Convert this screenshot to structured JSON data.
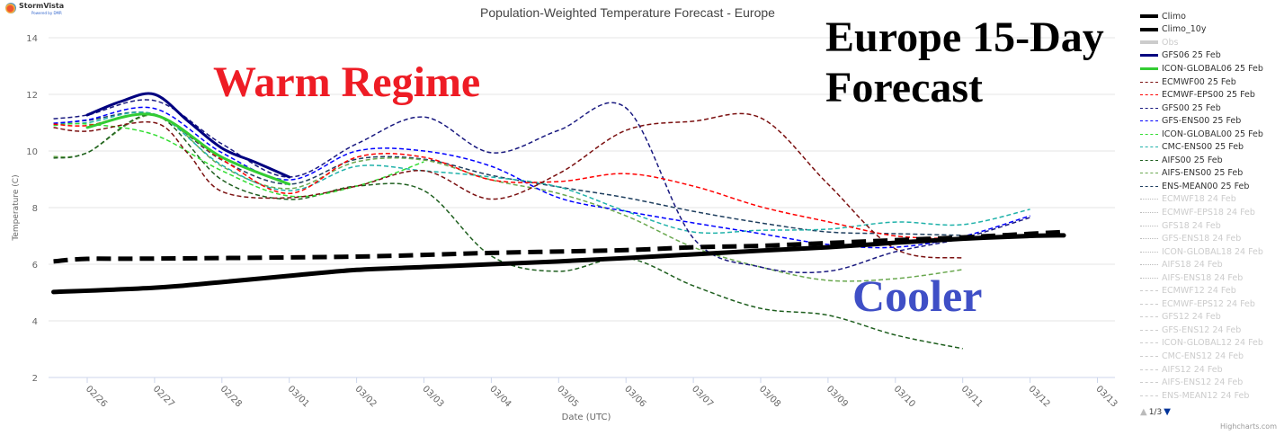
{
  "logo": {
    "name": "StormVista",
    "sub": "Powered by DMR"
  },
  "overlays": {
    "warm": "Warm Regime",
    "europe_line1": "Europe 15-Day",
    "europe_line2": "Forecast",
    "cooler": "Cooler"
  },
  "legend_pager": {
    "page": "1/3",
    "up_color": "#bbbbbb",
    "down_color": "#003399"
  },
  "credits": "Highcharts.com",
  "chart_data": {
    "type": "line",
    "title": "Population-Weighted Temperature Forecast - Europe",
    "xlabel": "Date (UTC)",
    "ylabel": "Temperature (C)",
    "ylim": [
      2,
      14
    ],
    "yticks": [
      2,
      4,
      6,
      8,
      10,
      12,
      14
    ],
    "xticks": [
      "02/26",
      "02/27",
      "02/28",
      "03/01",
      "03/02",
      "03/03",
      "03/04",
      "03/05",
      "03/06",
      "03/07",
      "03/08",
      "03/09",
      "03/10",
      "03/11",
      "03/12",
      "03/13"
    ],
    "grid": true,
    "legend_placement": "right",
    "series": [
      {
        "name": "Climo",
        "color": "#000000",
        "style": "solid-thick",
        "x": [
          "02/25 12",
          "02/27 00",
          "02/28 00",
          "03/01 00",
          "03/02 00",
          "03/03 00",
          "03/04 00",
          "03/05 00",
          "03/06 00",
          "03/07 00",
          "03/08 00",
          "03/09 00",
          "03/10 00",
          "03/11 00",
          "03/12 00",
          "03/12 12"
        ],
        "y": [
          5.02,
          5.17,
          5.37,
          5.59,
          5.8,
          5.9,
          6.0,
          6.1,
          6.22,
          6.35,
          6.48,
          6.6,
          6.76,
          6.9,
          7.0,
          7.02
        ]
      },
      {
        "name": "Climo_10y",
        "color": "#000000",
        "style": "dash-thick",
        "x": [
          "02/25 12",
          "02/26 00",
          "02/27 00",
          "03/02 00",
          "03/04 00",
          "03/06 00",
          "03/07 00",
          "03/08 00",
          "03/09 00",
          "03/10 00",
          "03/11 00",
          "03/12 12"
        ],
        "y": [
          6.1,
          6.19,
          6.2,
          6.27,
          6.4,
          6.5,
          6.6,
          6.65,
          6.75,
          6.85,
          6.95,
          7.14
        ]
      },
      {
        "name": "Obs",
        "color": "#cccccc",
        "style": "legend-only",
        "x": [],
        "y": []
      },
      {
        "name": "GFS06 25 Feb",
        "color": "#000080",
        "style": "solid",
        "x": [
          "02/26 00",
          "02/26 12",
          "02/27 00",
          "02/27 12",
          "02/28 00",
          "02/28 12",
          "03/01 00"
        ],
        "y": [
          11.27,
          11.75,
          12.0,
          11.05,
          10.1,
          9.6,
          9.08
        ]
      },
      {
        "name": "ICON-GLOBAL06 25 Feb",
        "color": "#33cc33",
        "style": "solid",
        "x": [
          "02/26 00",
          "02/27 00",
          "02/28 00",
          "03/01 00"
        ],
        "y": [
          10.83,
          11.27,
          9.78,
          8.83
        ]
      },
      {
        "name": "ECMWF00 25 Feb",
        "color": "#7b1010",
        "style": "dash",
        "x": [
          "02/25 12",
          "02/26 00",
          "02/27 00",
          "02/27 12",
          "02/28 00",
          "03/01 00",
          "03/02 00",
          "03/03 00",
          "03/04 00",
          "03/05 00",
          "03/06 00",
          "03/07 00",
          "03/08 00",
          "03/09 00",
          "03/10 00",
          "03/11 00"
        ],
        "y": [
          10.83,
          10.7,
          11.0,
          9.9,
          8.57,
          8.35,
          8.76,
          9.3,
          8.3,
          9.2,
          10.73,
          11.05,
          11.17,
          8.83,
          6.54,
          6.22
        ]
      },
      {
        "name": "ECMWF-EPS00 25 Feb",
        "color": "#ff0000",
        "style": "dash",
        "x": [
          "02/25 12",
          "02/26 00",
          "02/27 00",
          "02/28 00",
          "03/01 00",
          "03/02 00",
          "03/03 00",
          "03/04 00",
          "03/05 00",
          "03/06 00",
          "03/07 00",
          "03/08 00",
          "03/09 00",
          "03/10 00",
          "03/11 00"
        ],
        "y": [
          10.95,
          10.9,
          11.27,
          9.7,
          8.5,
          9.78,
          9.78,
          8.98,
          8.92,
          9.2,
          8.76,
          8.03,
          7.5,
          7.0,
          6.9
        ]
      },
      {
        "name": "GFS00 25 Feb",
        "color": "#1a1a80",
        "style": "dash",
        "x": [
          "02/25 12",
          "02/26 00",
          "02/27 00",
          "02/28 00",
          "03/01 00",
          "03/02 00",
          "03/03 00",
          "03/04 00",
          "03/05 00",
          "03/06 00",
          "03/07 00",
          "03/08 00",
          "03/09 00",
          "03/10 00",
          "03/11 00",
          "03/12 00"
        ],
        "y": [
          11.14,
          11.27,
          11.78,
          10.25,
          9.08,
          10.25,
          11.2,
          9.94,
          10.73,
          11.52,
          6.92,
          5.9,
          5.75,
          6.44,
          6.92,
          7.65
        ]
      },
      {
        "name": "GFS-ENS00 25 Feb",
        "color": "#0000ff",
        "style": "dash",
        "x": [
          "02/25 12",
          "02/26 00",
          "02/27 00",
          "02/28 00",
          "03/01 00",
          "03/02 00",
          "03/03 00",
          "03/04 00",
          "03/05 00",
          "03/06 00",
          "03/07 00",
          "03/08 00",
          "03/09 00",
          "03/10 00",
          "03/11 00",
          "03/12 00"
        ],
        "y": [
          10.98,
          11.1,
          11.5,
          9.94,
          8.98,
          10.0,
          10.0,
          9.46,
          8.35,
          7.87,
          7.46,
          7.08,
          6.7,
          6.6,
          6.98,
          7.71
        ]
      },
      {
        "name": "ICON-GLOBAL00 25 Feb",
        "color": "#33dd33",
        "style": "dash",
        "x": [
          "02/25 12",
          "02/26 00",
          "02/27 00",
          "02/28 00",
          "03/01 00",
          "03/02 00",
          "03/03 00"
        ],
        "y": [
          10.9,
          10.95,
          10.57,
          9.3,
          8.41,
          8.76,
          9.62
        ]
      },
      {
        "name": "CMC-ENS00 25 Feb",
        "color": "#20b2aa",
        "style": "dash",
        "x": [
          "02/25 12",
          "02/26 00",
          "02/27 00",
          "02/28 00",
          "03/01 00",
          "03/02 00",
          "03/03 00",
          "03/04 00",
          "03/05 00",
          "03/06 00",
          "03/07 00",
          "03/08 00",
          "03/09 00",
          "03/10 00",
          "03/11 00",
          "03/12 00"
        ],
        "y": [
          10.95,
          11.0,
          11.3,
          9.5,
          8.6,
          9.46,
          9.3,
          9.08,
          8.73,
          7.87,
          7.14,
          7.2,
          7.24,
          7.49,
          7.4,
          7.94
        ]
      },
      {
        "name": "AIFS00 25 Feb",
        "color": "#1f5f1f",
        "style": "dash",
        "x": [
          "02/25 12",
          "02/26 00",
          "02/27 00",
          "02/28 00",
          "03/01 00",
          "03/02 00",
          "03/03 00",
          "03/04 00",
          "03/05 00",
          "03/06 00",
          "03/07 00",
          "03/08 00",
          "03/09 00",
          "03/10 00",
          "03/11 00"
        ],
        "y": [
          9.75,
          9.94,
          11.27,
          8.98,
          8.29,
          8.76,
          8.6,
          6.29,
          5.75,
          6.22,
          5.24,
          4.44,
          4.2,
          3.5,
          3.02
        ]
      },
      {
        "name": "AIFS-ENS00 25 Feb",
        "color": "#6aa84f",
        "style": "dash",
        "x": [
          "02/25 12",
          "02/26 00",
          "02/27 00",
          "02/28 00",
          "03/01 00",
          "03/02 00",
          "03/03 00",
          "03/04 00",
          "03/05 00",
          "03/06 00",
          "03/07 00",
          "03/08 00",
          "03/09 00",
          "03/10 00",
          "03/11 00"
        ],
        "y": [
          9.8,
          9.94,
          11.27,
          9.46,
          8.67,
          9.62,
          9.68,
          8.98,
          8.5,
          7.71,
          6.6,
          5.9,
          5.43,
          5.49,
          5.81
        ]
      },
      {
        "name": "ENS-MEAN00 25 Feb",
        "color": "#1f3f5f",
        "style": "dash",
        "x": [
          "02/25 12",
          "02/26 00",
          "02/27 00",
          "02/28 00",
          "03/01 00",
          "03/02 00",
          "03/03 00",
          "03/04 00",
          "03/05 00",
          "03/06 00",
          "03/07 00",
          "03/08 00",
          "03/09 00",
          "03/10 00",
          "03/11 00"
        ],
        "y": [
          10.95,
          11.08,
          11.3,
          9.68,
          8.83,
          9.71,
          9.71,
          9.14,
          8.73,
          8.35,
          7.87,
          7.46,
          7.14,
          7.08,
          7.02
        ]
      },
      {
        "name": "ECMWF18 24 Feb",
        "color": "#cccccc",
        "style": "legend-dot"
      },
      {
        "name": "ECMWF-EPS18 24 Feb",
        "color": "#cccccc",
        "style": "legend-dot"
      },
      {
        "name": "GFS18 24 Feb",
        "color": "#cccccc",
        "style": "legend-dot"
      },
      {
        "name": "GFS-ENS18 24 Feb",
        "color": "#cccccc",
        "style": "legend-dot"
      },
      {
        "name": "ICON-GLOBAL18 24 Feb",
        "color": "#cccccc",
        "style": "legend-dot"
      },
      {
        "name": "AIFS18 24 Feb",
        "color": "#cccccc",
        "style": "legend-dot"
      },
      {
        "name": "AIFS-ENS18 24 Feb",
        "color": "#cccccc",
        "style": "legend-dot"
      },
      {
        "name": "ECMWF12 24 Feb",
        "color": "#cccccc",
        "style": "legend-longdash"
      },
      {
        "name": "ECMWF-EPS12 24 Feb",
        "color": "#cccccc",
        "style": "legend-longdash"
      },
      {
        "name": "GFS12 24 Feb",
        "color": "#cccccc",
        "style": "legend-longdash"
      },
      {
        "name": "GFS-ENS12 24 Feb",
        "color": "#cccccc",
        "style": "legend-longdash"
      },
      {
        "name": "ICON-GLOBAL12 24 Feb",
        "color": "#cccccc",
        "style": "legend-longdash"
      },
      {
        "name": "CMC-ENS12 24 Feb",
        "color": "#cccccc",
        "style": "legend-longdash"
      },
      {
        "name": "AIFS12 24 Feb",
        "color": "#cccccc",
        "style": "legend-longdash"
      },
      {
        "name": "AIFS-ENS12 24 Feb",
        "color": "#cccccc",
        "style": "legend-longdash"
      },
      {
        "name": "ENS-MEAN12 24 Feb",
        "color": "#cccccc",
        "style": "legend-longdash"
      }
    ]
  }
}
